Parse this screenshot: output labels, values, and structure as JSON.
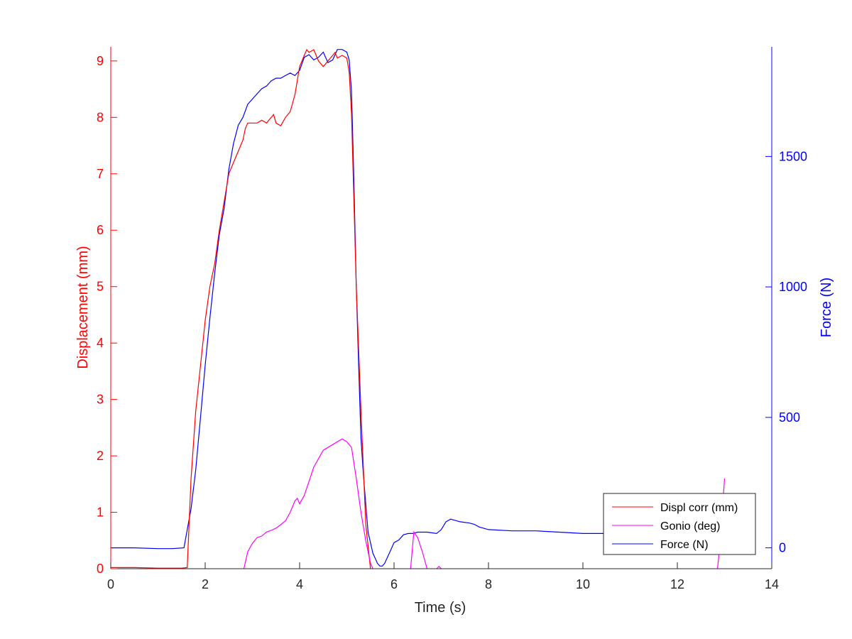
{
  "colors": {
    "displacement": "#ff0000",
    "gonio": "#ff00ff",
    "force": "#0000ff",
    "axis_left": "#ff0000",
    "axis_right": "#0000ff",
    "axis_bottom": "#262626"
  },
  "chart_data": {
    "type": "line",
    "xlabel": "Time (s)",
    "ylabel_left": "Displacement (mm)",
    "ylabel_right": "Force (N)",
    "xlim": [
      0,
      14
    ],
    "ylim_left": [
      0,
      9.25
    ],
    "ylim_right": [
      -80,
      1920
    ],
    "x_ticks": [
      "0",
      "2",
      "4",
      "6",
      "8",
      "10",
      "12",
      "14"
    ],
    "x_tick_values": [
      0,
      2,
      4,
      6,
      8,
      10,
      12,
      14
    ],
    "y_left_ticks": [
      "0",
      "1",
      "2",
      "3",
      "4",
      "5",
      "6",
      "7",
      "8",
      "9"
    ],
    "y_left_tick_values": [
      0,
      1,
      2,
      3,
      4,
      5,
      6,
      7,
      8,
      9
    ],
    "y_right_ticks": [
      "0",
      "500",
      "1000",
      "1500"
    ],
    "y_right_tick_values": [
      0,
      500,
      1000,
      1500
    ],
    "grid": false,
    "legend_position": "bottom-right",
    "series": [
      {
        "name": "Displ corr (mm)",
        "axis": "left",
        "x": [
          0,
          0.5,
          1.0,
          1.5,
          1.62,
          1.7,
          1.8,
          1.9,
          2.0,
          2.1,
          2.2,
          2.3,
          2.4,
          2.5,
          2.6,
          2.7,
          2.8,
          2.85,
          2.9,
          3.0,
          3.1,
          3.2,
          3.3,
          3.4,
          3.45,
          3.5,
          3.6,
          3.7,
          3.8,
          3.9,
          4.0,
          4.1,
          4.15,
          4.2,
          4.3,
          4.4,
          4.5,
          4.6,
          4.7,
          4.75,
          4.8,
          4.9,
          5.0,
          5.05,
          5.1,
          5.15,
          5.2,
          5.3,
          5.4,
          5.5
        ],
        "y": [
          0.02,
          0.02,
          0.01,
          0.01,
          0.02,
          1.6,
          2.8,
          3.6,
          4.4,
          5.0,
          5.4,
          6.0,
          6.5,
          7.0,
          7.2,
          7.4,
          7.6,
          7.8,
          7.9,
          7.9,
          7.9,
          7.95,
          7.9,
          8.0,
          8.05,
          7.9,
          7.85,
          8.0,
          8.1,
          8.4,
          8.9,
          9.1,
          9.2,
          9.15,
          9.2,
          9.0,
          8.9,
          9.0,
          9.1,
          9.15,
          9.05,
          9.1,
          9.05,
          8.8,
          8.05,
          6.5,
          5.0,
          2.8,
          0.8,
          0.0
        ]
      },
      {
        "name": "Gonio (deg)",
        "axis": "left",
        "x": [
          2.82,
          2.9,
          3.0,
          3.1,
          3.2,
          3.3,
          3.4,
          3.5,
          3.6,
          3.7,
          3.8,
          3.9,
          3.95,
          4.0,
          4.1,
          4.2,
          4.3,
          4.4,
          4.5,
          4.6,
          4.7,
          4.8,
          4.9,
          5.0,
          5.1,
          5.2,
          5.3,
          5.4,
          5.5,
          5.55
        ],
        "y": [
          0.0,
          0.3,
          0.45,
          0.55,
          0.58,
          0.65,
          0.68,
          0.72,
          0.78,
          0.85,
          1.0,
          1.2,
          1.25,
          1.15,
          1.3,
          1.55,
          1.8,
          1.95,
          2.1,
          2.15,
          2.2,
          2.25,
          2.3,
          2.25,
          2.15,
          1.6,
          1.0,
          0.5,
          0.1,
          0.0
        ],
        "x2": [
          6.35,
          6.42,
          6.5,
          6.6,
          6.7
        ],
        "y2": [
          0.0,
          0.65,
          0.55,
          0.3,
          0.0
        ],
        "x3": [
          6.9,
          6.95,
          7.0
        ],
        "y3": [
          0.0,
          0.04,
          0.0
        ],
        "x4": [
          12.85,
          12.9,
          12.95,
          13.0
        ],
        "y4": [
          0.0,
          0.4,
          1.0,
          1.6
        ]
      },
      {
        "name": "Force (N)",
        "axis": "right",
        "x": [
          0,
          0.5,
          1.0,
          1.3,
          1.55,
          1.6,
          1.7,
          1.8,
          1.9,
          2.0,
          2.1,
          2.2,
          2.3,
          2.4,
          2.5,
          2.6,
          2.7,
          2.8,
          2.9,
          3.0,
          3.1,
          3.2,
          3.3,
          3.4,
          3.5,
          3.6,
          3.7,
          3.8,
          3.9,
          4.0,
          4.1,
          4.2,
          4.3,
          4.4,
          4.5,
          4.6,
          4.7,
          4.8,
          4.9,
          5.0,
          5.05,
          5.1,
          5.15,
          5.2,
          5.25,
          5.3,
          5.35,
          5.4,
          5.45,
          5.5,
          5.55,
          5.6,
          5.65,
          5.7,
          5.75,
          5.8,
          5.9,
          6.0,
          6.1,
          6.2,
          6.3,
          6.4,
          6.5,
          6.7,
          6.9,
          7.0,
          7.1,
          7.2,
          7.4,
          7.6,
          7.7,
          7.8,
          8.0,
          8.5,
          9.0,
          9.5,
          10.0,
          10.5
        ],
        "y": [
          0,
          0,
          -3,
          -3,
          0,
          50,
          150,
          300,
          500,
          700,
          880,
          1050,
          1200,
          1300,
          1450,
          1550,
          1620,
          1650,
          1700,
          1720,
          1740,
          1760,
          1770,
          1790,
          1800,
          1800,
          1810,
          1820,
          1810,
          1830,
          1880,
          1890,
          1870,
          1880,
          1900,
          1860,
          1870,
          1910,
          1910,
          1900,
          1870,
          1750,
          1400,
          1000,
          700,
          420,
          280,
          170,
          60,
          20,
          -20,
          -40,
          -60,
          -70,
          -70,
          -60,
          -20,
          20,
          30,
          50,
          55,
          55,
          60,
          60,
          55,
          70,
          100,
          110,
          100,
          95,
          90,
          80,
          70,
          65,
          65,
          60,
          55,
          55
        ]
      }
    ]
  }
}
